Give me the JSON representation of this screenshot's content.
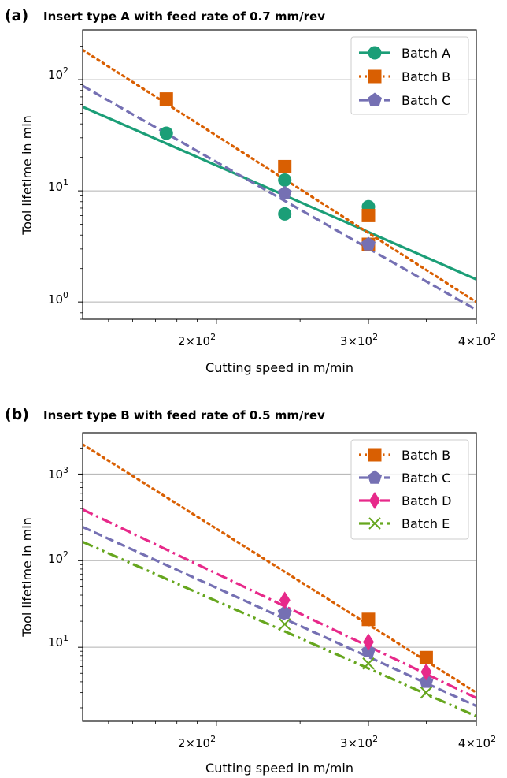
{
  "chart_data": [
    {
      "type": "scatter",
      "panel_label": "(a)",
      "title": "Insert type A with feed rate of 0.7 mm/rev",
      "xlabel": "Cutting speed in m/min",
      "ylabel": "Tool lifetime in min",
      "x_scale": "log",
      "y_scale": "log",
      "xlim": [
        140,
        400
      ],
      "ylim": [
        0.7,
        280
      ],
      "x_ticks": [
        {
          "value": 200,
          "base": "2",
          "mult": "×",
          "pow": "10",
          "exp": "2"
        },
        {
          "value": 300,
          "base": "3",
          "mult": "×",
          "pow": "10",
          "exp": "2"
        },
        {
          "value": 400,
          "base": "4",
          "mult": "×",
          "pow": "10",
          "exp": "2"
        }
      ],
      "y_ticks": [
        {
          "value": 1,
          "pow": "10",
          "exp": "0"
        },
        {
          "value": 10,
          "pow": "10",
          "exp": "1"
        },
        {
          "value": 100,
          "pow": "10",
          "exp": "2"
        }
      ],
      "grid": "horizontal",
      "legend_position": "top-right",
      "series": [
        {
          "name": "Batch A",
          "color": "#1b9e77",
          "marker": "circle",
          "line": "solid",
          "points": [
            {
              "x": 175,
              "y": 33
            },
            {
              "x": 240,
              "y": 12.5
            },
            {
              "x": 240,
              "y": 6.2
            },
            {
              "x": 300,
              "y": 7.2
            }
          ],
          "fit": [
            {
              "x": 140,
              "y": 57
            },
            {
              "x": 400,
              "y": 1.6
            }
          ]
        },
        {
          "name": "Batch B",
          "color": "#d95f02",
          "marker": "square",
          "line": "dotted",
          "points": [
            {
              "x": 175,
              "y": 67
            },
            {
              "x": 240,
              "y": 16.5
            },
            {
              "x": 300,
              "y": 6
            },
            {
              "x": 300,
              "y": 3.3
            }
          ],
          "fit": [
            {
              "x": 140,
              "y": 185
            },
            {
              "x": 400,
              "y": 1.0
            }
          ]
        },
        {
          "name": "Batch C",
          "color": "#7570b3",
          "marker": "pentagon",
          "line": "dashed",
          "points": [
            {
              "x": 240,
              "y": 9.5
            },
            {
              "x": 300,
              "y": 3.3
            }
          ],
          "fit": [
            {
              "x": 140,
              "y": 88
            },
            {
              "x": 400,
              "y": 0.85
            }
          ]
        }
      ]
    },
    {
      "type": "scatter",
      "panel_label": "(b)",
      "title": "Insert type B with feed rate of 0.5 mm/rev",
      "xlabel": "Cutting speed in m/min",
      "ylabel": "Tool lifetime in min",
      "x_scale": "log",
      "y_scale": "log",
      "xlim": [
        140,
        400
      ],
      "ylim": [
        1.4,
        3000
      ],
      "x_ticks": [
        {
          "value": 200,
          "base": "2",
          "mult": "×",
          "pow": "10",
          "exp": "2"
        },
        {
          "value": 300,
          "base": "3",
          "mult": "×",
          "pow": "10",
          "exp": "2"
        },
        {
          "value": 400,
          "base": "4",
          "mult": "×",
          "pow": "10",
          "exp": "2"
        }
      ],
      "y_ticks": [
        {
          "value": 10,
          "pow": "10",
          "exp": "1"
        },
        {
          "value": 100,
          "pow": "10",
          "exp": "2"
        },
        {
          "value": 1000,
          "pow": "10",
          "exp": "3"
        }
      ],
      "grid": "horizontal",
      "legend_position": "top-right",
      "series": [
        {
          "name": "Batch B",
          "color": "#d95f02",
          "marker": "square",
          "line": "dotted",
          "points": [
            {
              "x": 300,
              "y": 21
            },
            {
              "x": 350,
              "y": 7.6
            }
          ],
          "fit": [
            {
              "x": 140,
              "y": 2200
            },
            {
              "x": 400,
              "y": 3.0
            }
          ]
        },
        {
          "name": "Batch C",
          "color": "#7570b3",
          "marker": "pentagon",
          "line": "dashed",
          "points": [
            {
              "x": 240,
              "y": 25
            },
            {
              "x": 300,
              "y": 9
            },
            {
              "x": 350,
              "y": 4
            }
          ],
          "fit": [
            {
              "x": 140,
              "y": 245
            },
            {
              "x": 400,
              "y": 2.1
            }
          ]
        },
        {
          "name": "Batch D",
          "color": "#e7298a",
          "marker": "diamond",
          "line": "dashdot",
          "points": [
            {
              "x": 240,
              "y": 35
            },
            {
              "x": 300,
              "y": 11.5
            },
            {
              "x": 350,
              "y": 5.2
            }
          ],
          "fit": [
            {
              "x": 140,
              "y": 390
            },
            {
              "x": 400,
              "y": 2.6
            }
          ]
        },
        {
          "name": "Batch E",
          "color": "#66a61e",
          "marker": "x",
          "line": "dashdotdot",
          "points": [
            {
              "x": 240,
              "y": 18.5
            },
            {
              "x": 300,
              "y": 6.5
            },
            {
              "x": 350,
              "y": 3
            }
          ],
          "fit": [
            {
              "x": 140,
              "y": 165
            },
            {
              "x": 400,
              "y": 1.6
            }
          ]
        }
      ]
    }
  ]
}
